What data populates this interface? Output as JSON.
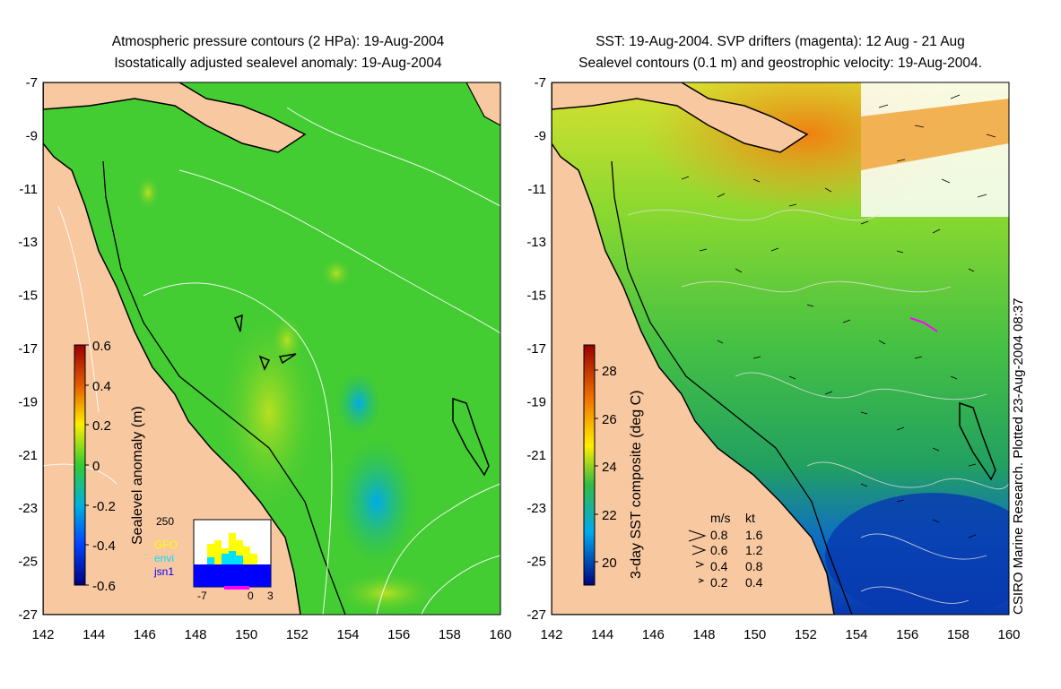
{
  "left_panel": {
    "title_line1": "Atmospheric pressure contours (2 HPa): 19-Aug-2004",
    "title_line2": "Isostatically adjusted sealevel anomaly: 19-Aug-2004",
    "colorbar": {
      "label": "Sealevel anomaly (m)",
      "ticks": [
        "0.6",
        "0.4",
        "0.2",
        "0",
        "-0.2",
        "-0.4",
        "-0.6"
      ]
    },
    "inset": {
      "ytick": "250",
      "xticks": [
        "-7",
        "0",
        "3"
      ],
      "legend": [
        {
          "label": "GFO",
          "color": "#ffff00"
        },
        {
          "label": "envi",
          "color": "#00e0ff"
        },
        {
          "label": "jsn1",
          "color": "#0000ff"
        }
      ]
    }
  },
  "right_panel": {
    "title_line1": "SST: 19-Aug-2004. SVP drifters (magenta): 12 Aug - 21 Aug",
    "title_line2": "Sealevel contours (0.1 m) and geostrophic velocity: 19-Aug-2004.",
    "colorbar": {
      "label": "3-day SST composite (deg C)",
      "ticks": [
        "28",
        "26",
        "24",
        "22",
        "20"
      ]
    },
    "velocity_legend": {
      "header_ms": "m/s",
      "header_kt": "kt",
      "rows": [
        {
          "ms": "0.8",
          "kt": "1.6"
        },
        {
          "ms": "0.6",
          "kt": "1.2"
        },
        {
          "ms": "0.4",
          "kt": "0.8"
        },
        {
          "ms": "0.2",
          "kt": "0.4"
        }
      ]
    }
  },
  "axes": {
    "lat_ticks": [
      "-7",
      "-9",
      "-11",
      "-13",
      "-15",
      "-17",
      "-19",
      "-21",
      "-23",
      "-25",
      "-27"
    ],
    "lon_ticks": [
      "142",
      "144",
      "146",
      "148",
      "150",
      "152",
      "154",
      "156",
      "158",
      "160"
    ]
  },
  "credit": "CSIRO Marine Research. Plotted 23-Aug-2004 08:37",
  "colors": {
    "land": "#f8c8a0",
    "sla_background": "#44cc33",
    "sst_background": "#33b855"
  }
}
